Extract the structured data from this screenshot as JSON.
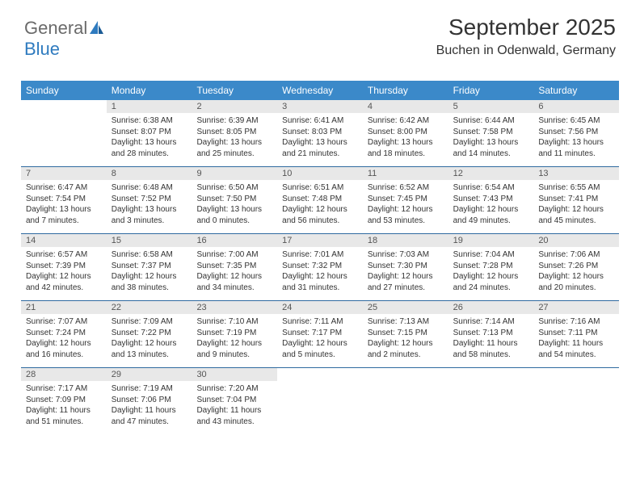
{
  "logo": {
    "text_general": "General",
    "text_blue": "Blue"
  },
  "header": {
    "month": "September 2025",
    "location": "Buchen in Odenwald, Germany"
  },
  "colors": {
    "header_bg": "#3b89c9",
    "daynum_bg": "#e8e8e8",
    "week_border": "#2f6aa0",
    "text": "#333333",
    "logo_gray": "#6a6a6a",
    "logo_blue": "#2f7bbf"
  },
  "day_names": [
    "Sunday",
    "Monday",
    "Tuesday",
    "Wednesday",
    "Thursday",
    "Friday",
    "Saturday"
  ],
  "weeks": [
    [
      {
        "n": "",
        "empty": true
      },
      {
        "n": "1",
        "sr": "6:38 AM",
        "ss": "8:07 PM",
        "dl": "13 hours and 28 minutes."
      },
      {
        "n": "2",
        "sr": "6:39 AM",
        "ss": "8:05 PM",
        "dl": "13 hours and 25 minutes."
      },
      {
        "n": "3",
        "sr": "6:41 AM",
        "ss": "8:03 PM",
        "dl": "13 hours and 21 minutes."
      },
      {
        "n": "4",
        "sr": "6:42 AM",
        "ss": "8:00 PM",
        "dl": "13 hours and 18 minutes."
      },
      {
        "n": "5",
        "sr": "6:44 AM",
        "ss": "7:58 PM",
        "dl": "13 hours and 14 minutes."
      },
      {
        "n": "6",
        "sr": "6:45 AM",
        "ss": "7:56 PM",
        "dl": "13 hours and 11 minutes."
      }
    ],
    [
      {
        "n": "7",
        "sr": "6:47 AM",
        "ss": "7:54 PM",
        "dl": "13 hours and 7 minutes."
      },
      {
        "n": "8",
        "sr": "6:48 AM",
        "ss": "7:52 PM",
        "dl": "13 hours and 3 minutes."
      },
      {
        "n": "9",
        "sr": "6:50 AM",
        "ss": "7:50 PM",
        "dl": "13 hours and 0 minutes."
      },
      {
        "n": "10",
        "sr": "6:51 AM",
        "ss": "7:48 PM",
        "dl": "12 hours and 56 minutes."
      },
      {
        "n": "11",
        "sr": "6:52 AM",
        "ss": "7:45 PM",
        "dl": "12 hours and 53 minutes."
      },
      {
        "n": "12",
        "sr": "6:54 AM",
        "ss": "7:43 PM",
        "dl": "12 hours and 49 minutes."
      },
      {
        "n": "13",
        "sr": "6:55 AM",
        "ss": "7:41 PM",
        "dl": "12 hours and 45 minutes."
      }
    ],
    [
      {
        "n": "14",
        "sr": "6:57 AM",
        "ss": "7:39 PM",
        "dl": "12 hours and 42 minutes."
      },
      {
        "n": "15",
        "sr": "6:58 AM",
        "ss": "7:37 PM",
        "dl": "12 hours and 38 minutes."
      },
      {
        "n": "16",
        "sr": "7:00 AM",
        "ss": "7:35 PM",
        "dl": "12 hours and 34 minutes."
      },
      {
        "n": "17",
        "sr": "7:01 AM",
        "ss": "7:32 PM",
        "dl": "12 hours and 31 minutes."
      },
      {
        "n": "18",
        "sr": "7:03 AM",
        "ss": "7:30 PM",
        "dl": "12 hours and 27 minutes."
      },
      {
        "n": "19",
        "sr": "7:04 AM",
        "ss": "7:28 PM",
        "dl": "12 hours and 24 minutes."
      },
      {
        "n": "20",
        "sr": "7:06 AM",
        "ss": "7:26 PM",
        "dl": "12 hours and 20 minutes."
      }
    ],
    [
      {
        "n": "21",
        "sr": "7:07 AM",
        "ss": "7:24 PM",
        "dl": "12 hours and 16 minutes."
      },
      {
        "n": "22",
        "sr": "7:09 AM",
        "ss": "7:22 PM",
        "dl": "12 hours and 13 minutes."
      },
      {
        "n": "23",
        "sr": "7:10 AM",
        "ss": "7:19 PM",
        "dl": "12 hours and 9 minutes."
      },
      {
        "n": "24",
        "sr": "7:11 AM",
        "ss": "7:17 PM",
        "dl": "12 hours and 5 minutes."
      },
      {
        "n": "25",
        "sr": "7:13 AM",
        "ss": "7:15 PM",
        "dl": "12 hours and 2 minutes."
      },
      {
        "n": "26",
        "sr": "7:14 AM",
        "ss": "7:13 PM",
        "dl": "11 hours and 58 minutes."
      },
      {
        "n": "27",
        "sr": "7:16 AM",
        "ss": "7:11 PM",
        "dl": "11 hours and 54 minutes."
      }
    ],
    [
      {
        "n": "28",
        "sr": "7:17 AM",
        "ss": "7:09 PM",
        "dl": "11 hours and 51 minutes."
      },
      {
        "n": "29",
        "sr": "7:19 AM",
        "ss": "7:06 PM",
        "dl": "11 hours and 47 minutes."
      },
      {
        "n": "30",
        "sr": "7:20 AM",
        "ss": "7:04 PM",
        "dl": "11 hours and 43 minutes."
      },
      {
        "n": "",
        "empty": true
      },
      {
        "n": "",
        "empty": true
      },
      {
        "n": "",
        "empty": true
      },
      {
        "n": "",
        "empty": true
      }
    ]
  ],
  "labels": {
    "sunrise": "Sunrise:",
    "sunset": "Sunset:",
    "daylight": "Daylight:"
  }
}
